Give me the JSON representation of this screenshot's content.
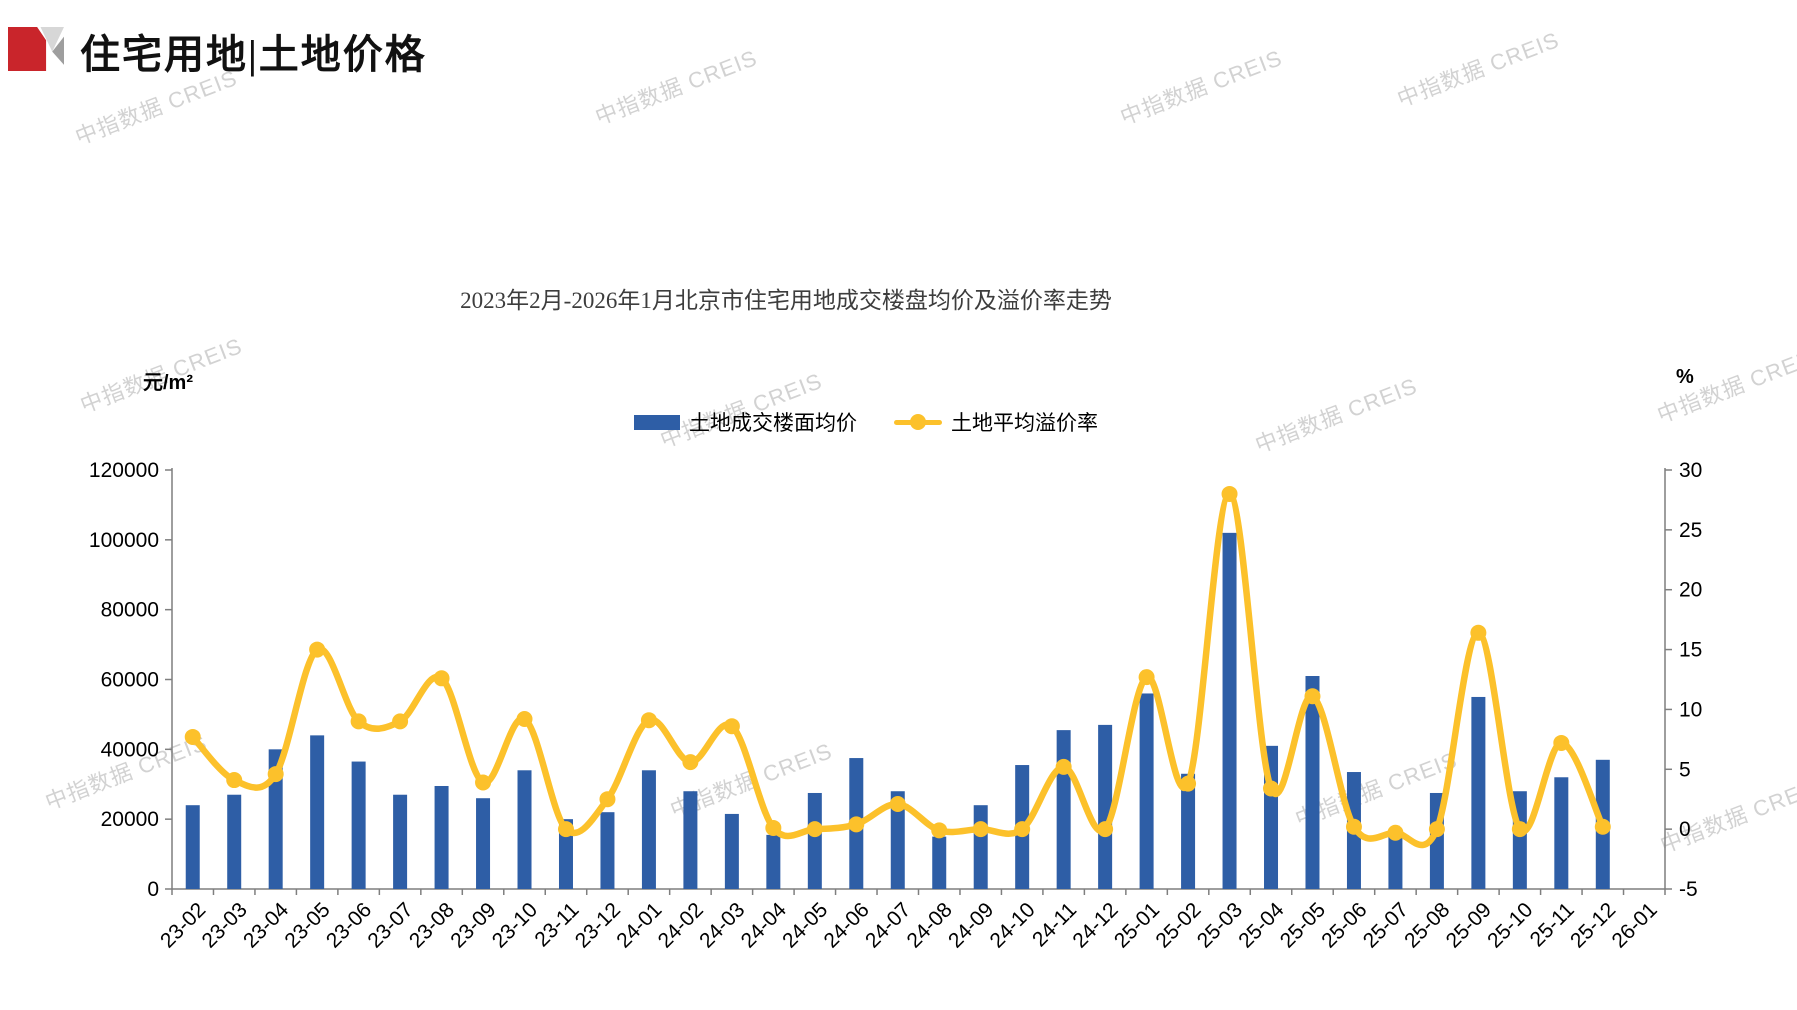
{
  "header": {
    "title": "住宅用地|土地价格"
  },
  "watermark": {
    "text": "中指数据 CREIS"
  },
  "chart_data": {
    "type": "bar",
    "title": "2023年2月-2026年1月北京市住宅用地成交楼盘均价及溢价率走势",
    "categories": [
      "23-02",
      "23-03",
      "23-04",
      "23-05",
      "23-06",
      "23-07",
      "23-08",
      "23-09",
      "23-10",
      "23-11",
      "23-12",
      "24-01",
      "24-02",
      "24-03",
      "24-04",
      "24-05",
      "24-06",
      "24-07",
      "24-08",
      "24-09",
      "24-10",
      "24-11",
      "24-12",
      "25-01",
      "25-02",
      "25-03",
      "25-04",
      "25-05",
      "25-06",
      "25-07",
      "25-08",
      "25-09",
      "25-10",
      "25-11",
      "25-12",
      "26-01"
    ],
    "series": [
      {
        "name": "土地成交楼面均价",
        "type": "bar",
        "axis": "left",
        "unit": "元/m²",
        "color": "#2E5EA6",
        "values": [
          24000,
          27000,
          40000,
          44000,
          36500,
          27000,
          29500,
          26000,
          34000,
          20000,
          22000,
          34000,
          28000,
          21500,
          15500,
          27500,
          37500,
          28000,
          15000,
          24000,
          35500,
          45500,
          47000,
          56000,
          33000,
          102000,
          41000,
          61000,
          33500,
          15500,
          27500,
          55000,
          28000,
          32000,
          37000,
          null
        ]
      },
      {
        "name": "土地平均溢价率",
        "type": "line",
        "axis": "right",
        "unit": "%",
        "color": "#FCC12B",
        "values": [
          7.7,
          4.1,
          4.6,
          15.0,
          9.0,
          9.0,
          12.6,
          3.9,
          9.2,
          0.0,
          2.5,
          9.1,
          5.6,
          8.6,
          0.1,
          0.0,
          0.4,
          2.1,
          -0.1,
          0.0,
          0.0,
          5.2,
          0.0,
          12.7,
          3.8,
          28.0,
          3.4,
          11.1,
          0.2,
          -0.3,
          0.0,
          16.4,
          0.0,
          7.2,
          0.2,
          null
        ]
      }
    ],
    "left_axis": {
      "unit": "元/m²",
      "min": 0,
      "max": 120000,
      "ticks": [
        0,
        20000,
        40000,
        60000,
        80000,
        100000,
        120000
      ]
    },
    "right_axis": {
      "unit": "%",
      "min": -5,
      "max": 30,
      "ticks": [
        -5,
        0,
        5,
        10,
        15,
        20,
        25,
        30
      ]
    },
    "legend_position": "top-center",
    "grid": false
  }
}
